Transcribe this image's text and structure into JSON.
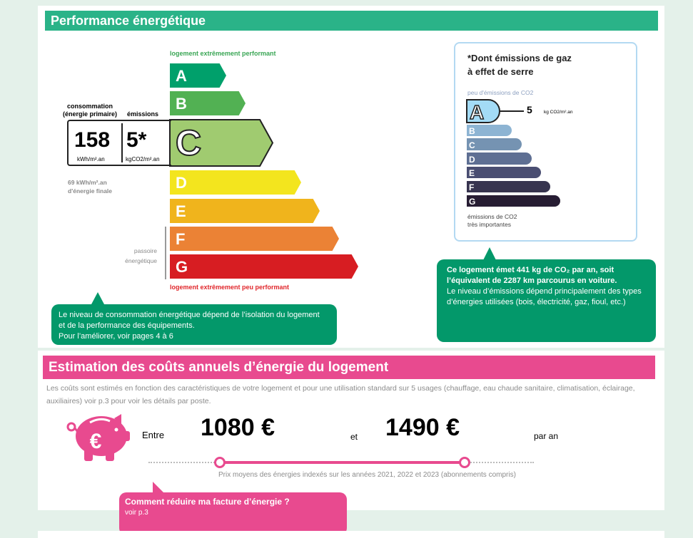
{
  "performance": {
    "title": "Performance énergétique",
    "top_label": "logement extrêmement performant",
    "bottom_label": "logement extrêmement peu performant",
    "consumption_label_1": "consommation",
    "consumption_label_2": "(énergie primaire)",
    "emissions_label": "émissions",
    "consumption_value": "158",
    "consumption_unit": "kWh/m².an",
    "emissions_value": "5*",
    "emissions_unit": "kgCO2/m².an",
    "final_energy_1": "69 kWh/m².an",
    "final_energy_2": "d'énergie finale",
    "passoire_1": "passoire",
    "passoire_2": "énergétique",
    "current_class": "C",
    "classes": [
      {
        "letter": "A",
        "color": "#00a06b"
      },
      {
        "letter": "B",
        "color": "#52b153"
      },
      {
        "letter": "C",
        "color": "#a0cb70"
      },
      {
        "letter": "D",
        "color": "#f3e51e"
      },
      {
        "letter": "E",
        "color": "#f0b41c"
      },
      {
        "letter": "F",
        "color": "#eb8235"
      },
      {
        "letter": "G",
        "color": "#d71d22"
      }
    ],
    "callout": {
      "line1": "Le niveau de consommation énergétique dépend de l’isolation du logement",
      "line2": "et de la performance des équipements.",
      "line3": "Pour l’améliorer, voir pages 4 à 6"
    }
  },
  "ghg": {
    "title_1": "*Dont émissions de gaz",
    "title_2": "à effet de serre",
    "top_label": "peu d'émissions de CO2",
    "bottom_label_1": "émissions de CO2",
    "bottom_label_2": "très importantes",
    "current_class": "A",
    "value": "5",
    "unit": "kg CO2/m².an",
    "classes": [
      {
        "letter": "A",
        "color": "#a3dbf6"
      },
      {
        "letter": "B",
        "color": "#8db4d3"
      },
      {
        "letter": "C",
        "color": "#7593b2"
      },
      {
        "letter": "D",
        "color": "#5e6f93"
      },
      {
        "letter": "E",
        "color": "#4a4e72"
      },
      {
        "letter": "F",
        "color": "#37344f"
      },
      {
        "letter": "G",
        "color": "#271d33"
      }
    ],
    "callout": {
      "line1": "Ce logement émet 441 kg de CO₂ par an, soit",
      "line2": "l’équivalent de 2287  km parcourus en voiture.",
      "line3": "Le niveau d’émissions dépend principalement des types",
      "line4": "d’énergies utilisées (bois, électricité, gaz, fioul, etc.)"
    }
  },
  "costs": {
    "title": "Estimation des coûts annuels d’énergie du logement",
    "description": "Les coûts sont estimés en fonction des caractéristiques de votre logement et pour une utilisation standard sur 5 usages (chauffage, eau chaude sanitaire, climatisation, éclairage, auxiliaires) voir p.3 pour voir les détails par poste.",
    "entre": "Entre",
    "min": "1080 €",
    "et": "et",
    "max": "1490 €",
    "per_year": "par an",
    "note": "Prix moyens des énergies indexés sur les années 2021, 2022 et 2023 (abonnements compris)",
    "callout_title": "Comment réduire ma facture d’énergie ?",
    "callout_sub": "voir p.3"
  },
  "colors": {
    "green": "#2ab388",
    "callout_green": "#03986a",
    "pink": "#e84a8f"
  }
}
